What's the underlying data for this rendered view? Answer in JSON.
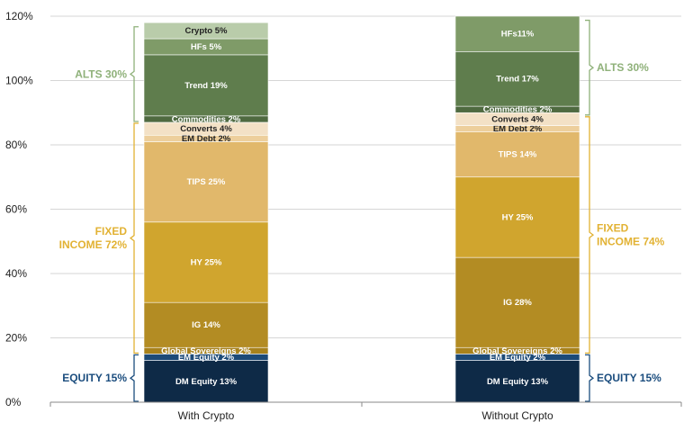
{
  "chart_data": {
    "type": "bar",
    "stacked": true,
    "categories": [
      "With Crypto",
      "Without Crypto"
    ],
    "ylim": [
      0,
      120
    ],
    "yticks": [
      "0%",
      "20%",
      "40%",
      "60%",
      "80%",
      "100%",
      "120%"
    ],
    "grid": true,
    "segments": [
      {
        "key": "dm_equity",
        "labels": [
          "DM Equity 13%",
          "DM Equity 13%"
        ],
        "values": [
          13,
          13
        ],
        "color": "#0e2a47",
        "text_color": "#ffffff"
      },
      {
        "key": "em_equity",
        "labels": [
          "EM Equity 2%",
          "EM Equity 2%"
        ],
        "values": [
          2,
          2
        ],
        "color": "#1c4a78",
        "text_color": "#ffffff"
      },
      {
        "key": "global_sovereigns",
        "labels": [
          "Global Sovereigns 2%",
          "Global Sovereigns 2%"
        ],
        "values": [
          2,
          2
        ],
        "color": "#a8821c",
        "text_color": "#ffffff"
      },
      {
        "key": "ig",
        "labels": [
          "IG 14%",
          "IG 28%"
        ],
        "values": [
          14,
          28
        ],
        "color": "#b38c23",
        "text_color": "#ffffff"
      },
      {
        "key": "hy",
        "labels": [
          "HY 25%",
          "HY 25%"
        ],
        "values": [
          25,
          25
        ],
        "color": "#d0a52e",
        "text_color": "#ffffff"
      },
      {
        "key": "tips",
        "labels": [
          "TIPS 25%",
          "TIPS 14%"
        ],
        "values": [
          25,
          14
        ],
        "color": "#e1b86b",
        "text_color": "#ffffff"
      },
      {
        "key": "em_debt",
        "labels": [
          "EM Debt 2%",
          "EM Debt 2%"
        ],
        "values": [
          2,
          2
        ],
        "color": "#edcf9c",
        "text_color": "#222222"
      },
      {
        "key": "converts",
        "labels": [
          "Converts 4%",
          "Converts 4%"
        ],
        "values": [
          4,
          4
        ],
        "color": "#f3e1c6",
        "text_color": "#222222"
      },
      {
        "key": "commodities",
        "labels": [
          "Commodities 2%",
          "Commodities 2%"
        ],
        "values": [
          2,
          2
        ],
        "color": "#4f6a40",
        "text_color": "#ffffff"
      },
      {
        "key": "trend",
        "labels": [
          "Trend 19%",
          "Trend 17%"
        ],
        "values": [
          19,
          17
        ],
        "color": "#5f7d4d",
        "text_color": "#ffffff"
      },
      {
        "key": "hfs",
        "labels": [
          "HFs 5%",
          "HFs11%"
        ],
        "values": [
          5,
          11
        ],
        "color": "#7f9b68",
        "text_color": "#ffffff"
      },
      {
        "key": "crypto",
        "labels": [
          "Crypto 5%",
          ""
        ],
        "values": [
          5,
          0
        ],
        "color": "#b9ccaa",
        "text_color": "#222222"
      }
    ],
    "groups": [
      {
        "key": "alts",
        "labels": [
          "ALTS 30%",
          "ALTS 30%"
        ],
        "range": [
          [
            87,
            117
          ],
          [
            89,
            119
          ]
        ],
        "color": "#8fb17a"
      },
      {
        "key": "fixed_income",
        "labels": [
          [
            "FIXED",
            "INCOME 72%"
          ],
          [
            "FIXED",
            "INCOME 74%"
          ]
        ],
        "range": [
          [
            15,
            87
          ],
          [
            15,
            89
          ]
        ],
        "color": "#e2b233"
      },
      {
        "key": "equity",
        "labels": [
          "EQUITY 15%",
          "EQUITY 15%"
        ],
        "range": [
          [
            0,
            15
          ],
          [
            0,
            15
          ]
        ],
        "color": "#1b4d7e"
      }
    ]
  }
}
